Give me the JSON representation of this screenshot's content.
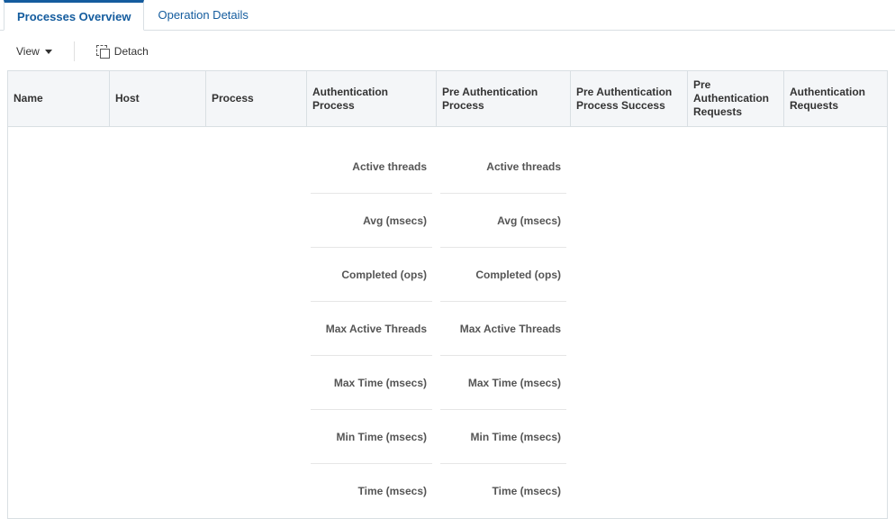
{
  "tabs": {
    "active": "Processes Overview",
    "inactive": "Operation Details"
  },
  "toolbar": {
    "view_label": "View",
    "detach_label": "Detach"
  },
  "columns": [
    "Name",
    "Host",
    "Process",
    "Authentication Process",
    "Pre Authentication Process",
    "Pre Authentication Process Success",
    "Pre Authentication Requests",
    "Authentication Requests"
  ],
  "metrics": [
    "Active threads",
    "Avg (msecs)",
    "Completed (ops)",
    "Max Active Threads",
    "Max Time (msecs)",
    "Min Time (msecs)",
    "Time (msecs)"
  ],
  "metric_columns": [
    3,
    4
  ]
}
